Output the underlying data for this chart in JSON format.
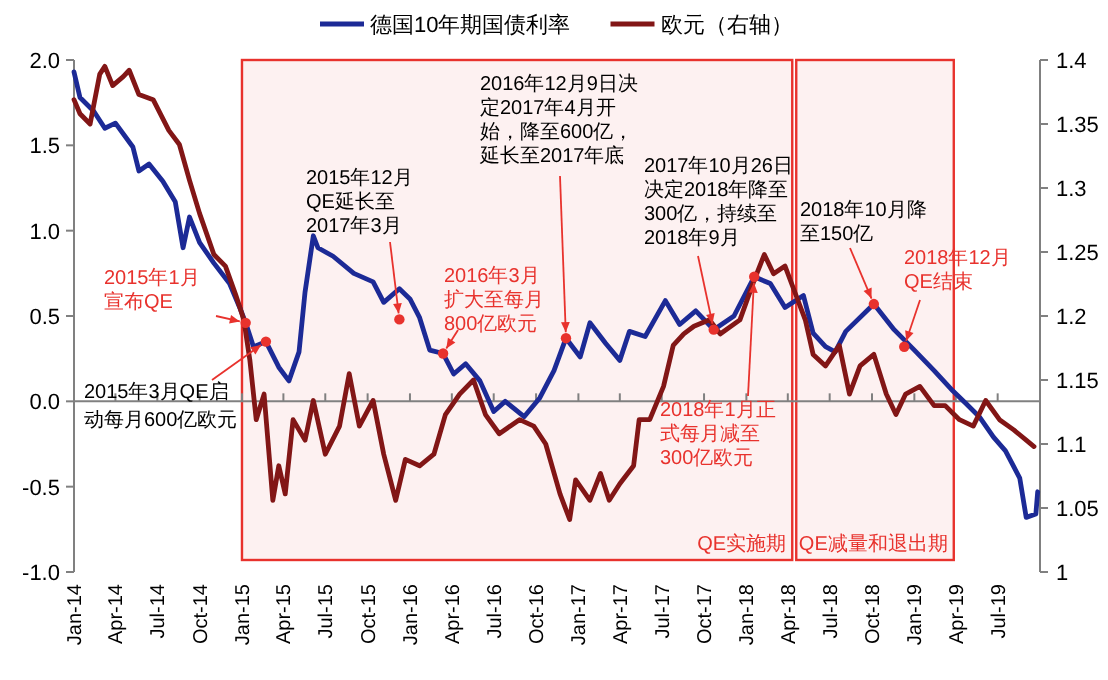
{
  "chart_data": {
    "type": "line",
    "legend": "top",
    "xlim": [
      "2014-01-01",
      "2019-10-01"
    ],
    "xticks": [
      {
        "value": "2014-01-01",
        "label": "Jan-14"
      },
      {
        "value": "2014-04-01",
        "label": "Apr-14"
      },
      {
        "value": "2014-07-01",
        "label": "Jul-14"
      },
      {
        "value": "2014-10-01",
        "label": "Oct-14"
      },
      {
        "value": "2015-01-01",
        "label": "Jan-15"
      },
      {
        "value": "2015-04-01",
        "label": "Apr-15"
      },
      {
        "value": "2015-07-01",
        "label": "Jul-15"
      },
      {
        "value": "2015-10-01",
        "label": "Oct-15"
      },
      {
        "value": "2016-01-01",
        "label": "Jan-16"
      },
      {
        "value": "2016-04-01",
        "label": "Apr-16"
      },
      {
        "value": "2016-07-01",
        "label": "Jul-16"
      },
      {
        "value": "2016-10-01",
        "label": "Oct-16"
      },
      {
        "value": "2017-01-01",
        "label": "Jan-17"
      },
      {
        "value": "2017-04-01",
        "label": "Apr-17"
      },
      {
        "value": "2017-07-01",
        "label": "Jul-17"
      },
      {
        "value": "2017-10-01",
        "label": "Oct-17"
      },
      {
        "value": "2018-01-01",
        "label": "Jan-18"
      },
      {
        "value": "2018-04-01",
        "label": "Apr-18"
      },
      {
        "value": "2018-07-01",
        "label": "Jul-18"
      },
      {
        "value": "2018-10-01",
        "label": "Oct-18"
      },
      {
        "value": "2019-01-01",
        "label": "Jan-19"
      },
      {
        "value": "2019-04-01",
        "label": "Apr-19"
      },
      {
        "value": "2019-07-01",
        "label": "Jul-19"
      }
    ],
    "ylim": [
      -1,
      2
    ],
    "yticks": [
      {
        "value": 2,
        "label": "2.0"
      },
      {
        "value": 1.5,
        "label": "1.5"
      },
      {
        "value": 1,
        "label": "1.0"
      },
      {
        "value": 0.5,
        "label": "0.5"
      },
      {
        "value": 0,
        "label": "0.0"
      },
      {
        "value": -0.5,
        "label": "-0.5"
      },
      {
        "value": -1,
        "label": "-1.0"
      }
    ],
    "y2lim": [
      1,
      1.4
    ],
    "y2ticks": [
      1.4,
      1.35,
      1.3,
      1.25,
      1.2,
      1.15,
      1.1,
      1.05,
      1
    ],
    "series": [
      {
        "name": "德国10年期国债利率",
        "color": "#1c2a96",
        "x": [
          "2014-01-01",
          "2014-01-14",
          "2014-02-13",
          "2014-03-09",
          "2014-04-01",
          "2014-05-09",
          "2014-05-22",
          "2014-06-13",
          "2014-07-13",
          "2014-08-09",
          "2014-08-26",
          "2014-09-09",
          "2014-10-01",
          "2014-11-01",
          "2014-12-05",
          "2014-12-27",
          "2015-01-09",
          "2015-01-26",
          "2015-02-22",
          "2015-03-22",
          "2015-04-13",
          "2015-05-05",
          "2015-05-18",
          "2015-06-05",
          "2015-06-15",
          "2015-07-18",
          "2015-09-01",
          "2015-10-13",
          "2015-11-05",
          "2015-12-09",
          "2016-01-01",
          "2016-01-22",
          "2016-02-13",
          "2016-03-13",
          "2016-04-05",
          "2016-05-01",
          "2016-06-01",
          "2016-07-01",
          "2016-07-26",
          "2016-09-05",
          "2016-10-09",
          "2016-11-09",
          "2016-12-05",
          "2017-01-05",
          "2017-01-26",
          "2017-03-01",
          "2017-04-01",
          "2017-04-22",
          "2017-05-26",
          "2017-07-09",
          "2017-08-09",
          "2017-09-13",
          "2017-10-22",
          "2017-12-05",
          "2018-01-18",
          "2018-02-22",
          "2018-03-26",
          "2018-05-05",
          "2018-05-26",
          "2018-06-22",
          "2018-07-13",
          "2018-08-05",
          "2018-10-05",
          "2018-11-18",
          "2019-01-01",
          "2019-02-13",
          "2019-03-26",
          "2019-04-22",
          "2019-05-22",
          "2019-06-22",
          "2019-07-18",
          "2019-08-18",
          "2019-09-01",
          "2019-09-22",
          "2019-09-26"
        ],
        "values": [
          1.93,
          1.78,
          1.7,
          1.6,
          1.63,
          1.49,
          1.35,
          1.39,
          1.29,
          1.17,
          0.9,
          1.08,
          0.93,
          0.81,
          0.69,
          0.55,
          0.46,
          0.32,
          0.35,
          0.2,
          0.12,
          0.29,
          0.64,
          0.97,
          0.9,
          0.85,
          0.75,
          0.7,
          0.58,
          0.66,
          0.6,
          0.49,
          0.3,
          0.28,
          0.16,
          0.22,
          0.12,
          -0.06,
          0.0,
          -0.09,
          0.02,
          0.18,
          0.37,
          0.26,
          0.46,
          0.34,
          0.24,
          0.41,
          0.38,
          0.59,
          0.45,
          0.53,
          0.42,
          0.5,
          0.73,
          0.69,
          0.55,
          0.62,
          0.4,
          0.32,
          0.29,
          0.41,
          0.57,
          0.42,
          0.3,
          0.18,
          0.06,
          -0.01,
          -0.09,
          -0.21,
          -0.29,
          -0.45,
          -0.68,
          -0.66,
          -0.53
        ]
      },
      {
        "name": "欧元（右轴）",
        "color": "#821616",
        "axis": "y2",
        "x": [
          "2014-01-01",
          "2014-01-14",
          "2014-02-05",
          "2014-02-26",
          "2014-03-09",
          "2014-03-26",
          "2014-04-18",
          "2014-05-01",
          "2014-05-22",
          "2014-06-22",
          "2014-07-26",
          "2014-08-18",
          "2014-09-09",
          "2014-10-01",
          "2014-11-01",
          "2014-11-26",
          "2014-12-18",
          "2015-01-05",
          "2015-01-18",
          "2015-02-01",
          "2015-02-18",
          "2015-03-09",
          "2015-03-22",
          "2015-04-05",
          "2015-04-22",
          "2015-05-18",
          "2015-06-05",
          "2015-07-01",
          "2015-08-01",
          "2015-08-22",
          "2015-09-13",
          "2015-10-13",
          "2015-11-05",
          "2015-12-01",
          "2015-12-22",
          "2016-01-22",
          "2016-02-22",
          "2016-03-18",
          "2016-04-18",
          "2016-05-18",
          "2016-06-13",
          "2016-07-13",
          "2016-08-26",
          "2016-09-26",
          "2016-10-22",
          "2016-11-22",
          "2016-12-13",
          "2016-12-26",
          "2017-01-26",
          "2017-02-18",
          "2017-03-09",
          "2017-04-01",
          "2017-05-01",
          "2017-05-13",
          "2017-06-05",
          "2017-07-05",
          "2017-07-26",
          "2017-08-18",
          "2017-09-09",
          "2017-10-13",
          "2017-11-05",
          "2017-12-18",
          "2018-01-18",
          "2018-02-09",
          "2018-03-01",
          "2018-03-26",
          "2018-04-18",
          "2018-05-09",
          "2018-05-26",
          "2018-06-22",
          "2018-07-22",
          "2018-08-13",
          "2018-09-05",
          "2018-10-05",
          "2018-11-01",
          "2018-11-22",
          "2018-12-13",
          "2019-01-13",
          "2019-02-13",
          "2019-03-09",
          "2019-04-09",
          "2019-05-09",
          "2019-06-05",
          "2019-07-05",
          "2019-08-05",
          "2019-09-01",
          "2019-09-18"
        ],
        "values": [
          1.369,
          1.358,
          1.35,
          1.389,
          1.395,
          1.38,
          1.387,
          1.392,
          1.373,
          1.369,
          1.345,
          1.334,
          1.306,
          1.28,
          1.248,
          1.239,
          1.217,
          1.197,
          1.166,
          1.119,
          1.139,
          1.056,
          1.083,
          1.061,
          1.119,
          1.103,
          1.134,
          1.092,
          1.114,
          1.155,
          1.114,
          1.134,
          1.092,
          1.056,
          1.088,
          1.083,
          1.092,
          1.123,
          1.139,
          1.15,
          1.123,
          1.108,
          1.119,
          1.114,
          1.1,
          1.061,
          1.041,
          1.072,
          1.056,
          1.077,
          1.056,
          1.069,
          1.083,
          1.119,
          1.119,
          1.145,
          1.177,
          1.186,
          1.192,
          1.197,
          1.186,
          1.197,
          1.228,
          1.248,
          1.233,
          1.239,
          1.217,
          1.197,
          1.17,
          1.161,
          1.177,
          1.139,
          1.161,
          1.17,
          1.139,
          1.123,
          1.139,
          1.145,
          1.13,
          1.13,
          1.119,
          1.114,
          1.134,
          1.119,
          1.111,
          1.103,
          1.098
        ]
      }
    ],
    "bands": [
      {
        "axis": "x",
        "from": "2015-01-01",
        "to": "2018-04-15",
        "label": "QE实施期",
        "color": "#e8322d"
      },
      {
        "axis": "x",
        "from": "2018-04-15",
        "to": "2019-04-01",
        "label": "QE减量和退出期",
        "color": "#e8322d"
      }
    ],
    "annotations": [
      {
        "text": "2015年1月宣布QE",
        "x": "2015-01-09",
        "y": 0.46
      },
      {
        "text": "2015年3月QE启动每月600亿欧元",
        "x": "2015-02-22",
        "y": 0.35
      },
      {
        "text": "2015年12月QE延长至2017年3月",
        "x": "2015-12-09",
        "y": 0.48
      },
      {
        "text": "2016年3月扩大至每月800亿欧元",
        "x": "2016-03-13",
        "y": 0.28
      },
      {
        "text": "2016年12月9日决定2017年4月开始，降至600亿，延长至2017年底",
        "x": "2016-12-05",
        "y": 0.37
      },
      {
        "text": "2017年10月26日决定2018年降至300亿，持续至2018年9月",
        "x": "2017-10-22",
        "y": 0.42
      },
      {
        "text": "2018年1月正式每月减至300亿欧元",
        "x": "2018-01-18",
        "y": 0.73
      },
      {
        "text": "2018年10月降至150亿",
        "x": "2018-10-05",
        "y": 0.57
      },
      {
        "text": "2018年12月QE结束",
        "x": "2018-12-10",
        "y": 0.32
      }
    ]
  }
}
